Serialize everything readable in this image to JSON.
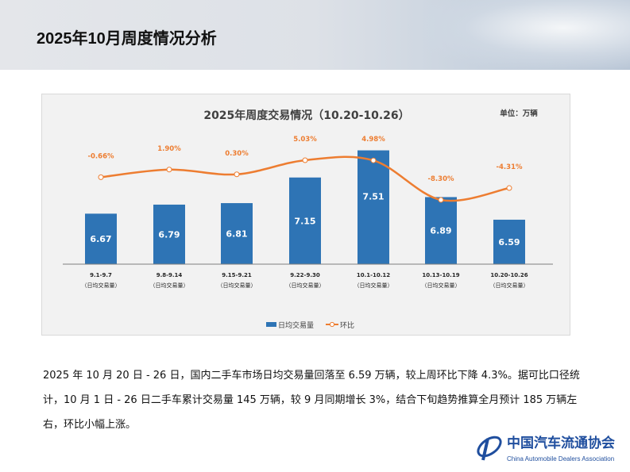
{
  "header": {
    "title": "2025年10月周度情况分析"
  },
  "chart_data": {
    "type": "bar+line",
    "title": "2025年周度交易情况（10.20-10.26）",
    "unit": "单位：万辆",
    "categories": [
      "9.1-9.7",
      "9.8-9.14",
      "9.15-9.21",
      "9.22-9.30",
      "10.1-10.12",
      "10.13-10.19",
      "10.20-10.26"
    ],
    "category_sub": "（日均交易量）",
    "series": [
      {
        "name": "日均交易量",
        "type": "bar",
        "color": "#2e74b5",
        "values": [
          6.67,
          6.79,
          6.81,
          7.15,
          7.51,
          6.89,
          6.59
        ],
        "labels": [
          "6.67",
          "6.79",
          "6.81",
          "7.15",
          "7.51",
          "6.89",
          "6.59"
        ]
      },
      {
        "name": "环比",
        "type": "line",
        "color": "#ed7d31",
        "values": [
          -0.66,
          1.9,
          0.3,
          5.03,
          4.98,
          -8.3,
          -4.31
        ],
        "labels": [
          "-0.66%",
          "1.90%",
          "0.30%",
          "5.03%",
          "4.98%",
          "-8.30%",
          "-4.31%"
        ]
      }
    ],
    "legend": "bottom",
    "grid": false
  },
  "body": {
    "paragraph": "2025 年 10 月 20 日 - 26 日，国内二手车市场日均交易量回落至 6.59 万辆，较上周环比下降 4.3%。据可比口径统计，10 月 1 日 - 26 日二手车累计交易量 145 万辆，较 9 月同期增长 3%，结合下旬趋势推算全月预计 185 万辆左右，环比小幅上涨。"
  },
  "logo": {
    "cn": "中国汽车流通协会",
    "en": "China Automobile Dealers Association",
    "mark": "CADA"
  }
}
